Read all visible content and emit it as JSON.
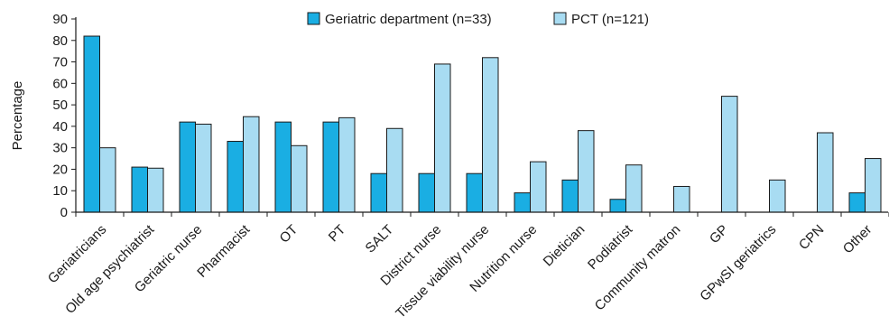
{
  "chart_data": {
    "type": "bar",
    "title": "",
    "xlabel": "",
    "ylabel": "Percentage",
    "ylim": [
      0,
      90
    ],
    "yticks": [
      "0",
      "10",
      "20",
      "30",
      "40",
      "50",
      "60",
      "70",
      "80",
      "90"
    ],
    "grid": false,
    "legend_position": "top-center",
    "categories": [
      "Geriatricians",
      "Old age psychiatrist",
      "Geriatric nurse",
      "Pharmacist",
      "OT",
      "PT",
      "SALT",
      "District nurse",
      "Tissue viability nurse",
      "Nutrition nurse",
      "Dietician",
      "Podiatrist",
      "Community matron",
      "GP",
      "GPwSI geriatrics",
      "CPN",
      "Other"
    ],
    "series": [
      {
        "name": "Geriatric department (n=33)",
        "color": "#1aaee3",
        "values": [
          82,
          21,
          42,
          33,
          42,
          42,
          18,
          18,
          18,
          9,
          15,
          6,
          0,
          0,
          0,
          0,
          9
        ]
      },
      {
        "name": "PCT (n=121)",
        "color": "#a8dcf2",
        "values": [
          30,
          20.5,
          41,
          44.5,
          31,
          44,
          39,
          69,
          72,
          23.5,
          38,
          22,
          12,
          54,
          15,
          37,
          25
        ]
      }
    ]
  }
}
